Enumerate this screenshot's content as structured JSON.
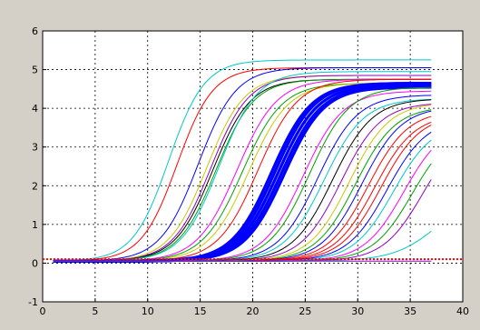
{
  "chart_data": {
    "type": "line",
    "title": "",
    "xlabel": "",
    "ylabel": "",
    "xlim": [
      0,
      40
    ],
    "ylim": [
      -1,
      6
    ],
    "xticks": [
      0,
      5,
      10,
      15,
      20,
      25,
      30,
      35,
      40
    ],
    "yticks": [
      -1,
      0,
      1,
      2,
      3,
      4,
      5,
      6
    ],
    "grid": true,
    "grid_style": "dotted",
    "threshold": {
      "y": 0.1,
      "color": "#ff0000",
      "style": "dotted"
    },
    "x_range": [
      1,
      37
    ],
    "sigmoid_params_note": "each curve: y = base + plateau / (1 + exp(-(x - midpoint)/slope))",
    "series": [
      {
        "color": "#00c8c8",
        "midpoint": 12.0,
        "plateau": 5.2,
        "slope": 1.7
      },
      {
        "color": "#ff0000",
        "midpoint": 12.8,
        "plateau": 5.0,
        "slope": 1.7
      },
      {
        "color": "#0000ff",
        "midpoint": 14.8,
        "plateau": 5.0,
        "slope": 1.8
      },
      {
        "color": "#c8c800",
        "midpoint": 15.6,
        "plateau": 4.8,
        "slope": 1.8
      },
      {
        "color": "#9000c0",
        "midpoint": 16.0,
        "plateau": 4.8,
        "slope": 1.8
      },
      {
        "color": "#000000",
        "midpoint": 16.2,
        "plateau": 4.7,
        "slope": 1.8
      },
      {
        "color": "#00a000",
        "midpoint": 16.5,
        "plateau": 4.7,
        "slope": 1.8
      },
      {
        "color": "#00c8c8",
        "midpoint": 16.8,
        "plateau": 4.9,
        "slope": 1.8
      },
      {
        "color": "#ff00ff",
        "midpoint": 18.5,
        "plateau": 4.7,
        "slope": 1.9
      },
      {
        "color": "#00a000",
        "midpoint": 19.0,
        "plateau": 4.6,
        "slope": 1.9
      },
      {
        "color": "#c8c800",
        "midpoint": 19.6,
        "plateau": 4.6,
        "slope": 1.9
      },
      {
        "color": "#ff0000",
        "midpoint": 20.5,
        "plateau": 4.7,
        "slope": 1.9
      },
      {
        "color": "#0000ff",
        "midpoint": 21.8,
        "plateau": 4.6,
        "slope": 1.9,
        "bold": true
      },
      {
        "color": "#0000ff",
        "midpoint": 22.1,
        "plateau": 4.6,
        "slope": 1.9,
        "bold": true
      },
      {
        "color": "#0000ff",
        "midpoint": 22.4,
        "plateau": 4.55,
        "slope": 1.9,
        "bold": true
      },
      {
        "color": "#0000ff",
        "midpoint": 22.7,
        "plateau": 4.5,
        "slope": 1.9,
        "bold": true
      },
      {
        "color": "#0000ff",
        "midpoint": 23.0,
        "plateau": 4.5,
        "slope": 1.9,
        "bold": true
      },
      {
        "color": "#ff00ff",
        "midpoint": 24.8,
        "plateau": 4.4,
        "slope": 1.9
      },
      {
        "color": "#00a000",
        "midpoint": 25.4,
        "plateau": 4.5,
        "slope": 1.9
      },
      {
        "color": "#0000ff",
        "midpoint": 26.2,
        "plateau": 4.3,
        "slope": 1.9
      },
      {
        "color": "#00c8c8",
        "midpoint": 26.8,
        "plateau": 4.2,
        "slope": 1.9
      },
      {
        "color": "#000000",
        "midpoint": 27.6,
        "plateau": 4.2,
        "slope": 1.9
      },
      {
        "color": "#9000c0",
        "midpoint": 28.4,
        "plateau": 4.1,
        "slope": 1.9
      },
      {
        "color": "#c8c800",
        "midpoint": 29.2,
        "plateau": 4.1,
        "slope": 1.9
      },
      {
        "color": "#00a000",
        "midpoint": 29.8,
        "plateau": 4.0,
        "slope": 1.9
      },
      {
        "color": "#0000ff",
        "midpoint": 30.4,
        "plateau": 4.0,
        "slope": 1.9
      },
      {
        "color": "#ff0000",
        "midpoint": 31.0,
        "plateau": 3.9,
        "slope": 1.9
      },
      {
        "color": "#ff0000",
        "midpoint": 31.6,
        "plateau": 3.8,
        "slope": 1.9
      },
      {
        "color": "#ff0000",
        "midpoint": 32.2,
        "plateau": 3.8,
        "slope": 1.9
      },
      {
        "color": "#0000ff",
        "midpoint": 32.8,
        "plateau": 3.7,
        "slope": 1.9
      },
      {
        "color": "#00c8c8",
        "midpoint": 33.4,
        "plateau": 3.6,
        "slope": 1.9
      },
      {
        "color": "#ff00ff",
        "midpoint": 34.4,
        "plateau": 3.6,
        "slope": 1.9
      },
      {
        "color": "#00a000",
        "midpoint": 35.2,
        "plateau": 3.5,
        "slope": 1.9
      },
      {
        "color": "#9000c0",
        "midpoint": 36.2,
        "plateau": 3.5,
        "slope": 1.9
      },
      {
        "color": "#00c8c8",
        "midpoint": 38.0,
        "plateau": 2.0,
        "slope": 2.2
      },
      {
        "color": "#9000c0",
        "midpoint": 60.0,
        "plateau": 0.0,
        "slope": 2.0
      }
    ]
  }
}
